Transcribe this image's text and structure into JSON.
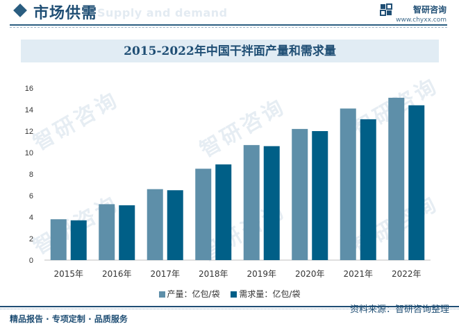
{
  "header": {
    "section_title": "市场供需",
    "section_ghost": "Supply and demand",
    "brand_name": "智研咨询",
    "brand_url": "www.chyxx.com"
  },
  "watermark_text": "智研咨询",
  "colors": {
    "production": "#5e8fa9",
    "demand": "#005f87",
    "accent": "#1f4e74"
  },
  "chart_data": {
    "type": "bar",
    "title": "2015-2022年中国干拌面产量和需求量",
    "categories": [
      "2015年",
      "2016年",
      "2017年",
      "2018年",
      "2019年",
      "2020年",
      "2021年",
      "2022年"
    ],
    "series": [
      {
        "name": "产量：亿包/袋",
        "values": [
          3.8,
          5.2,
          6.6,
          8.5,
          10.7,
          12.2,
          14.1,
          15.1
        ]
      },
      {
        "name": "需求量：亿包/袋",
        "values": [
          3.7,
          5.1,
          6.5,
          8.9,
          10.6,
          12.0,
          13.1,
          14.4
        ]
      }
    ],
    "ylim": [
      0,
      16
    ],
    "yticks": [
      0,
      2,
      4,
      6,
      8,
      10,
      12,
      14,
      16
    ],
    "grid": false,
    "legend": "bottom"
  },
  "footer": {
    "left": "精品报告 · 专项定制 · 品质服务",
    "right": "资料来源：智研咨询整理"
  }
}
